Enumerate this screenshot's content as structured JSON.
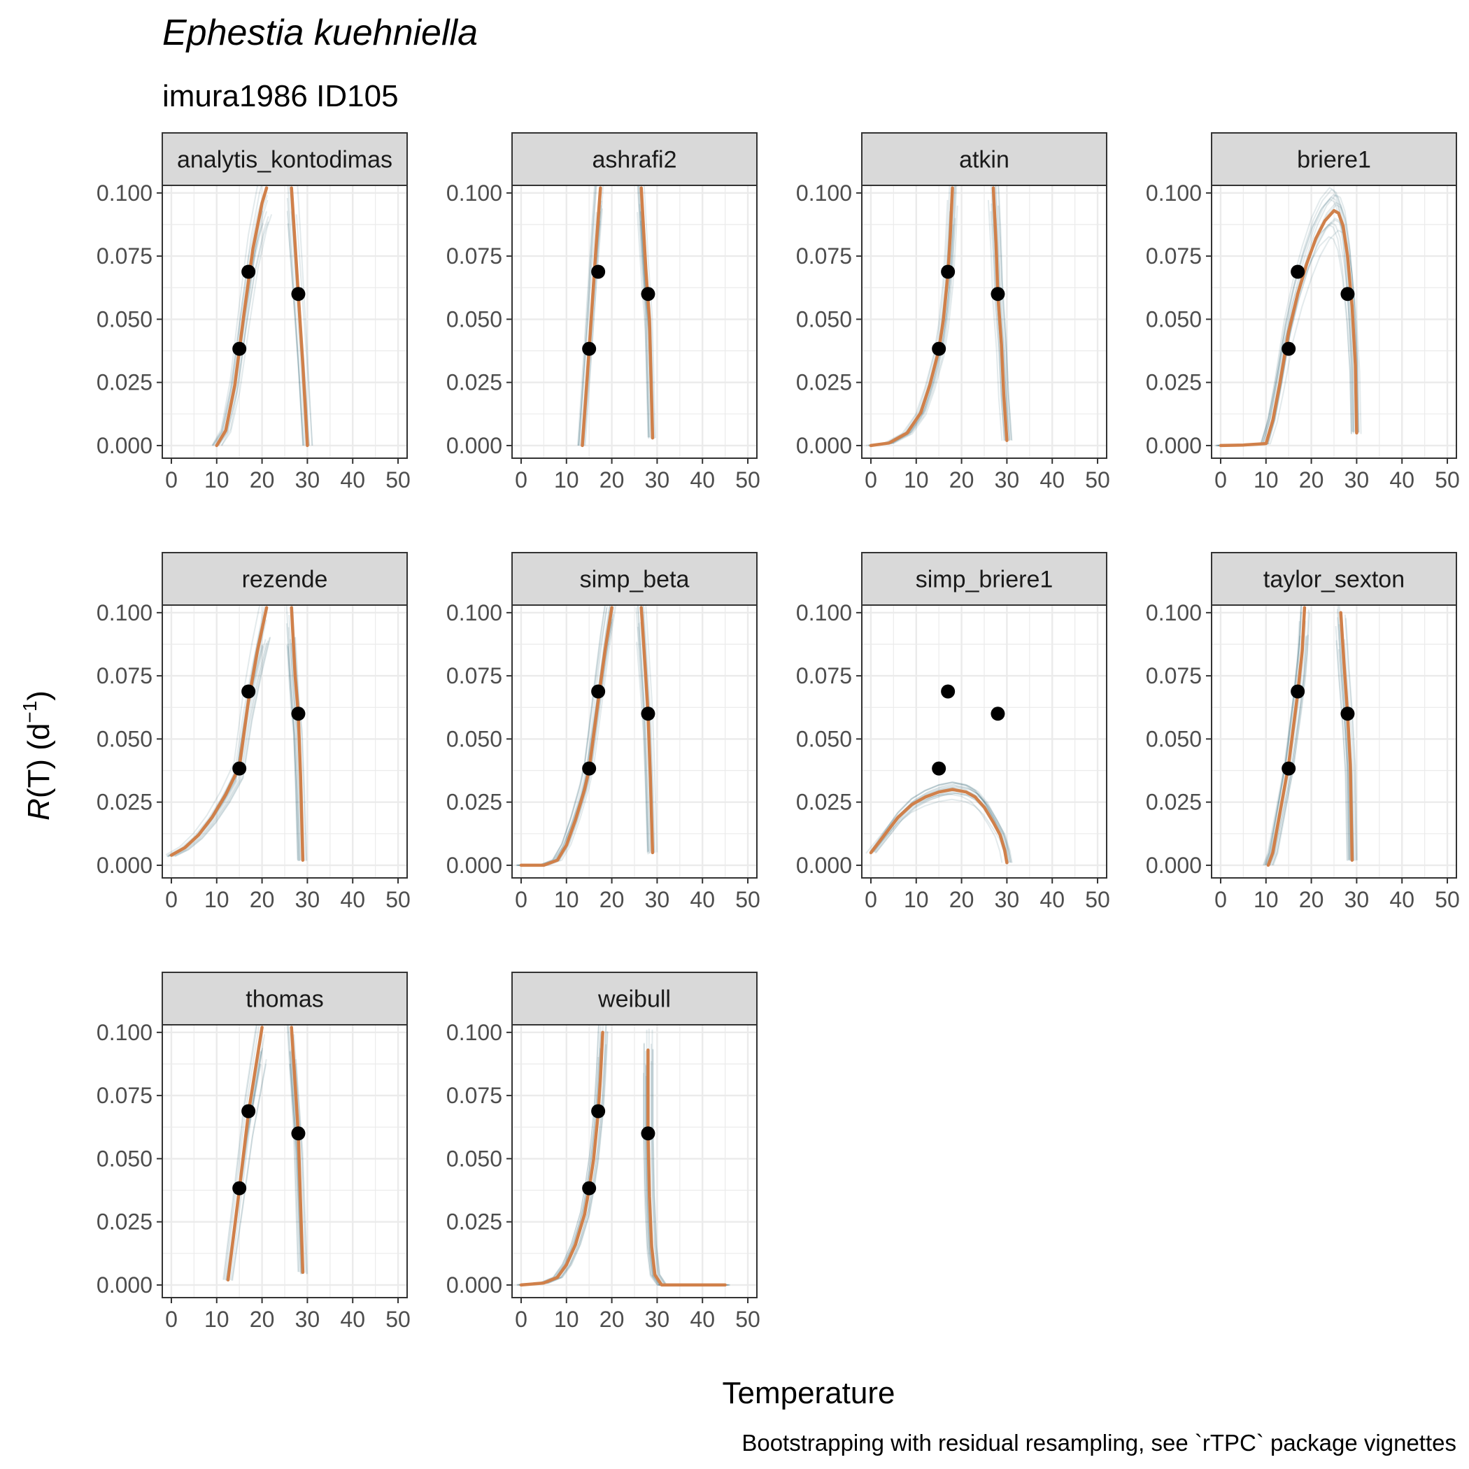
{
  "title": "Ephestia kuehniella",
  "subtitle": "imura1986 ID105",
  "xlabel": "Temperature",
  "ylabel_italic": "R",
  "ylabel_rest": "(T) (d",
  "ylabel_sup": "−1",
  "ylabel_close": ")",
  "caption": "Bootstrapping with residual resampling, see `rTPC` package vignettes",
  "colors": {
    "fit": "#D0804A",
    "bootstrap": "#1B4F66",
    "point": "#000000",
    "strip_fill": "#D9D9D9",
    "grid": "#EBEBEB"
  },
  "chart_data": {
    "type": "line",
    "facets_layout": "4 columns x 3 rows",
    "xlim": [
      -2,
      52
    ],
    "ylim": [
      -0.005,
      0.103
    ],
    "x_ticks": [
      0,
      10,
      20,
      30,
      40,
      50
    ],
    "y_ticks": [
      0.0,
      0.025,
      0.05,
      0.075,
      0.1
    ],
    "y_tick_labels": [
      "0.000",
      "0.025",
      "0.050",
      "0.075",
      "0.100"
    ],
    "grid": true,
    "observed_points": [
      {
        "x": 15,
        "y": 0.0383
      },
      {
        "x": 17,
        "y": 0.0688
      },
      {
        "x": 28,
        "y": 0.06
      }
    ],
    "panels": [
      {
        "name": "analytis_kontodimas",
        "fit": [
          [
            [
              10,
              0
            ],
            [
              12,
              0.006
            ],
            [
              14,
              0.024
            ],
            [
              16,
              0.052
            ],
            [
              18,
              0.078
            ],
            [
              20,
              0.096
            ],
            [
              21,
              0.102
            ]
          ],
          [
            [
              26.5,
              0.102
            ],
            [
              28,
              0.06
            ],
            [
              29,
              0.032
            ],
            [
              30,
              0
            ]
          ]
        ]
      },
      {
        "name": "ashrafi2",
        "fit": [
          [
            [
              13.5,
              0
            ],
            [
              15,
              0.038
            ],
            [
              16.5,
              0.078
            ],
            [
              17.5,
              0.102
            ]
          ],
          [
            [
              26.5,
              0.102
            ],
            [
              27.5,
              0.07
            ],
            [
              28.3,
              0.05
            ],
            [
              29,
              0.003
            ]
          ]
        ]
      },
      {
        "name": "atkin",
        "fit": [
          [
            [
              0,
              0
            ],
            [
              4,
              0.001
            ],
            [
              8,
              0.005
            ],
            [
              11,
              0.013
            ],
            [
              13,
              0.024
            ],
            [
              15,
              0.038
            ],
            [
              16,
              0.05
            ],
            [
              17,
              0.068
            ],
            [
              17.5,
              0.083
            ],
            [
              18,
              0.102
            ]
          ],
          [
            [
              27,
              0.102
            ],
            [
              27.6,
              0.08
            ],
            [
              28,
              0.06
            ],
            [
              28.8,
              0.04
            ],
            [
              29.3,
              0.02
            ],
            [
              30,
              0.002
            ]
          ]
        ]
      },
      {
        "name": "briere1",
        "fit": [
          [
            [
              0,
              0
            ],
            [
              5,
              0.0002
            ],
            [
              10,
              0.0008
            ],
            [
              11.5,
              0.01
            ],
            [
              13,
              0.024
            ],
            [
              15,
              0.045
            ],
            [
              17,
              0.06
            ],
            [
              19,
              0.072
            ],
            [
              21,
              0.082
            ],
            [
              23,
              0.089
            ],
            [
              25,
              0.093
            ],
            [
              26,
              0.092
            ],
            [
              27,
              0.087
            ],
            [
              28,
              0.075
            ],
            [
              29,
              0.055
            ],
            [
              29.7,
              0.032
            ],
            [
              30,
              0.005
            ]
          ]
        ]
      },
      {
        "name": "rezende",
        "fit": [
          [
            [
              0,
              0.004
            ],
            [
              3,
              0.007
            ],
            [
              6,
              0.012
            ],
            [
              9,
              0.019
            ],
            [
              12,
              0.028
            ],
            [
              15,
              0.039
            ],
            [
              17,
              0.065
            ],
            [
              19,
              0.085
            ],
            [
              21,
              0.102
            ]
          ],
          [
            [
              26.5,
              0.102
            ],
            [
              27.3,
              0.075
            ],
            [
              28,
              0.06
            ],
            [
              28.5,
              0.035
            ],
            [
              29,
              0.002
            ]
          ]
        ]
      },
      {
        "name": "simp_beta",
        "fit": [
          [
            [
              0,
              0
            ],
            [
              5,
              0
            ],
            [
              8,
              0.002
            ],
            [
              10,
              0.008
            ],
            [
              12,
              0.018
            ],
            [
              14,
              0.03
            ],
            [
              15,
              0.038
            ],
            [
              17,
              0.065
            ],
            [
              18.5,
              0.085
            ],
            [
              20,
              0.102
            ]
          ],
          [
            [
              26.5,
              0.102
            ],
            [
              27.3,
              0.08
            ],
            [
              28,
              0.06
            ],
            [
              28.5,
              0.035
            ],
            [
              29,
              0.005
            ]
          ]
        ]
      },
      {
        "name": "simp_briere1",
        "fit": [
          [
            [
              0,
              0.005
            ],
            [
              3,
              0.012
            ],
            [
              6,
              0.019
            ],
            [
              9,
              0.024
            ],
            [
              12,
              0.027
            ],
            [
              15,
              0.029
            ],
            [
              18,
              0.03
            ],
            [
              21,
              0.029
            ],
            [
              23,
              0.027
            ],
            [
              25,
              0.023
            ],
            [
              27,
              0.017
            ],
            [
              28.5,
              0.012
            ],
            [
              29.5,
              0.006
            ],
            [
              30,
              0.001
            ]
          ]
        ]
      },
      {
        "name": "taylor_sexton",
        "fit": [
          [
            [
              10.5,
              0
            ],
            [
              11.5,
              0.005
            ],
            [
              13,
              0.02
            ],
            [
              15,
              0.04
            ],
            [
              17,
              0.068
            ],
            [
              18,
              0.085
            ],
            [
              18.5,
              0.102
            ]
          ],
          [
            [
              26.5,
              0.1
            ],
            [
              27.2,
              0.08
            ],
            [
              28,
              0.06
            ],
            [
              28.6,
              0.04
            ],
            [
              29,
              0.002
            ]
          ]
        ]
      },
      {
        "name": "thomas",
        "fit": [
          [
            [
              12.5,
              0.002
            ],
            [
              15,
              0.038
            ],
            [
              17,
              0.068
            ],
            [
              20,
              0.102
            ]
          ],
          [
            [
              26.5,
              0.102
            ],
            [
              28,
              0.06
            ],
            [
              29,
              0.005
            ]
          ]
        ]
      },
      {
        "name": "weibull",
        "fit": [
          [
            [
              0,
              0
            ],
            [
              5,
              0.0008
            ],
            [
              8,
              0.003
            ],
            [
              10,
              0.008
            ],
            [
              12,
              0.016
            ],
            [
              14,
              0.028
            ],
            [
              15,
              0.038
            ],
            [
              16,
              0.05
            ],
            [
              17,
              0.068
            ],
            [
              17.5,
              0.082
            ],
            [
              18,
              0.1
            ]
          ],
          [
            [
              28,
              0.093
            ],
            [
              28,
              0.06
            ],
            [
              28.3,
              0.035
            ],
            [
              28.8,
              0.015
            ],
            [
              29.5,
              0.004
            ],
            [
              31,
              0
            ],
            [
              45,
              0
            ]
          ]
        ]
      }
    ]
  }
}
